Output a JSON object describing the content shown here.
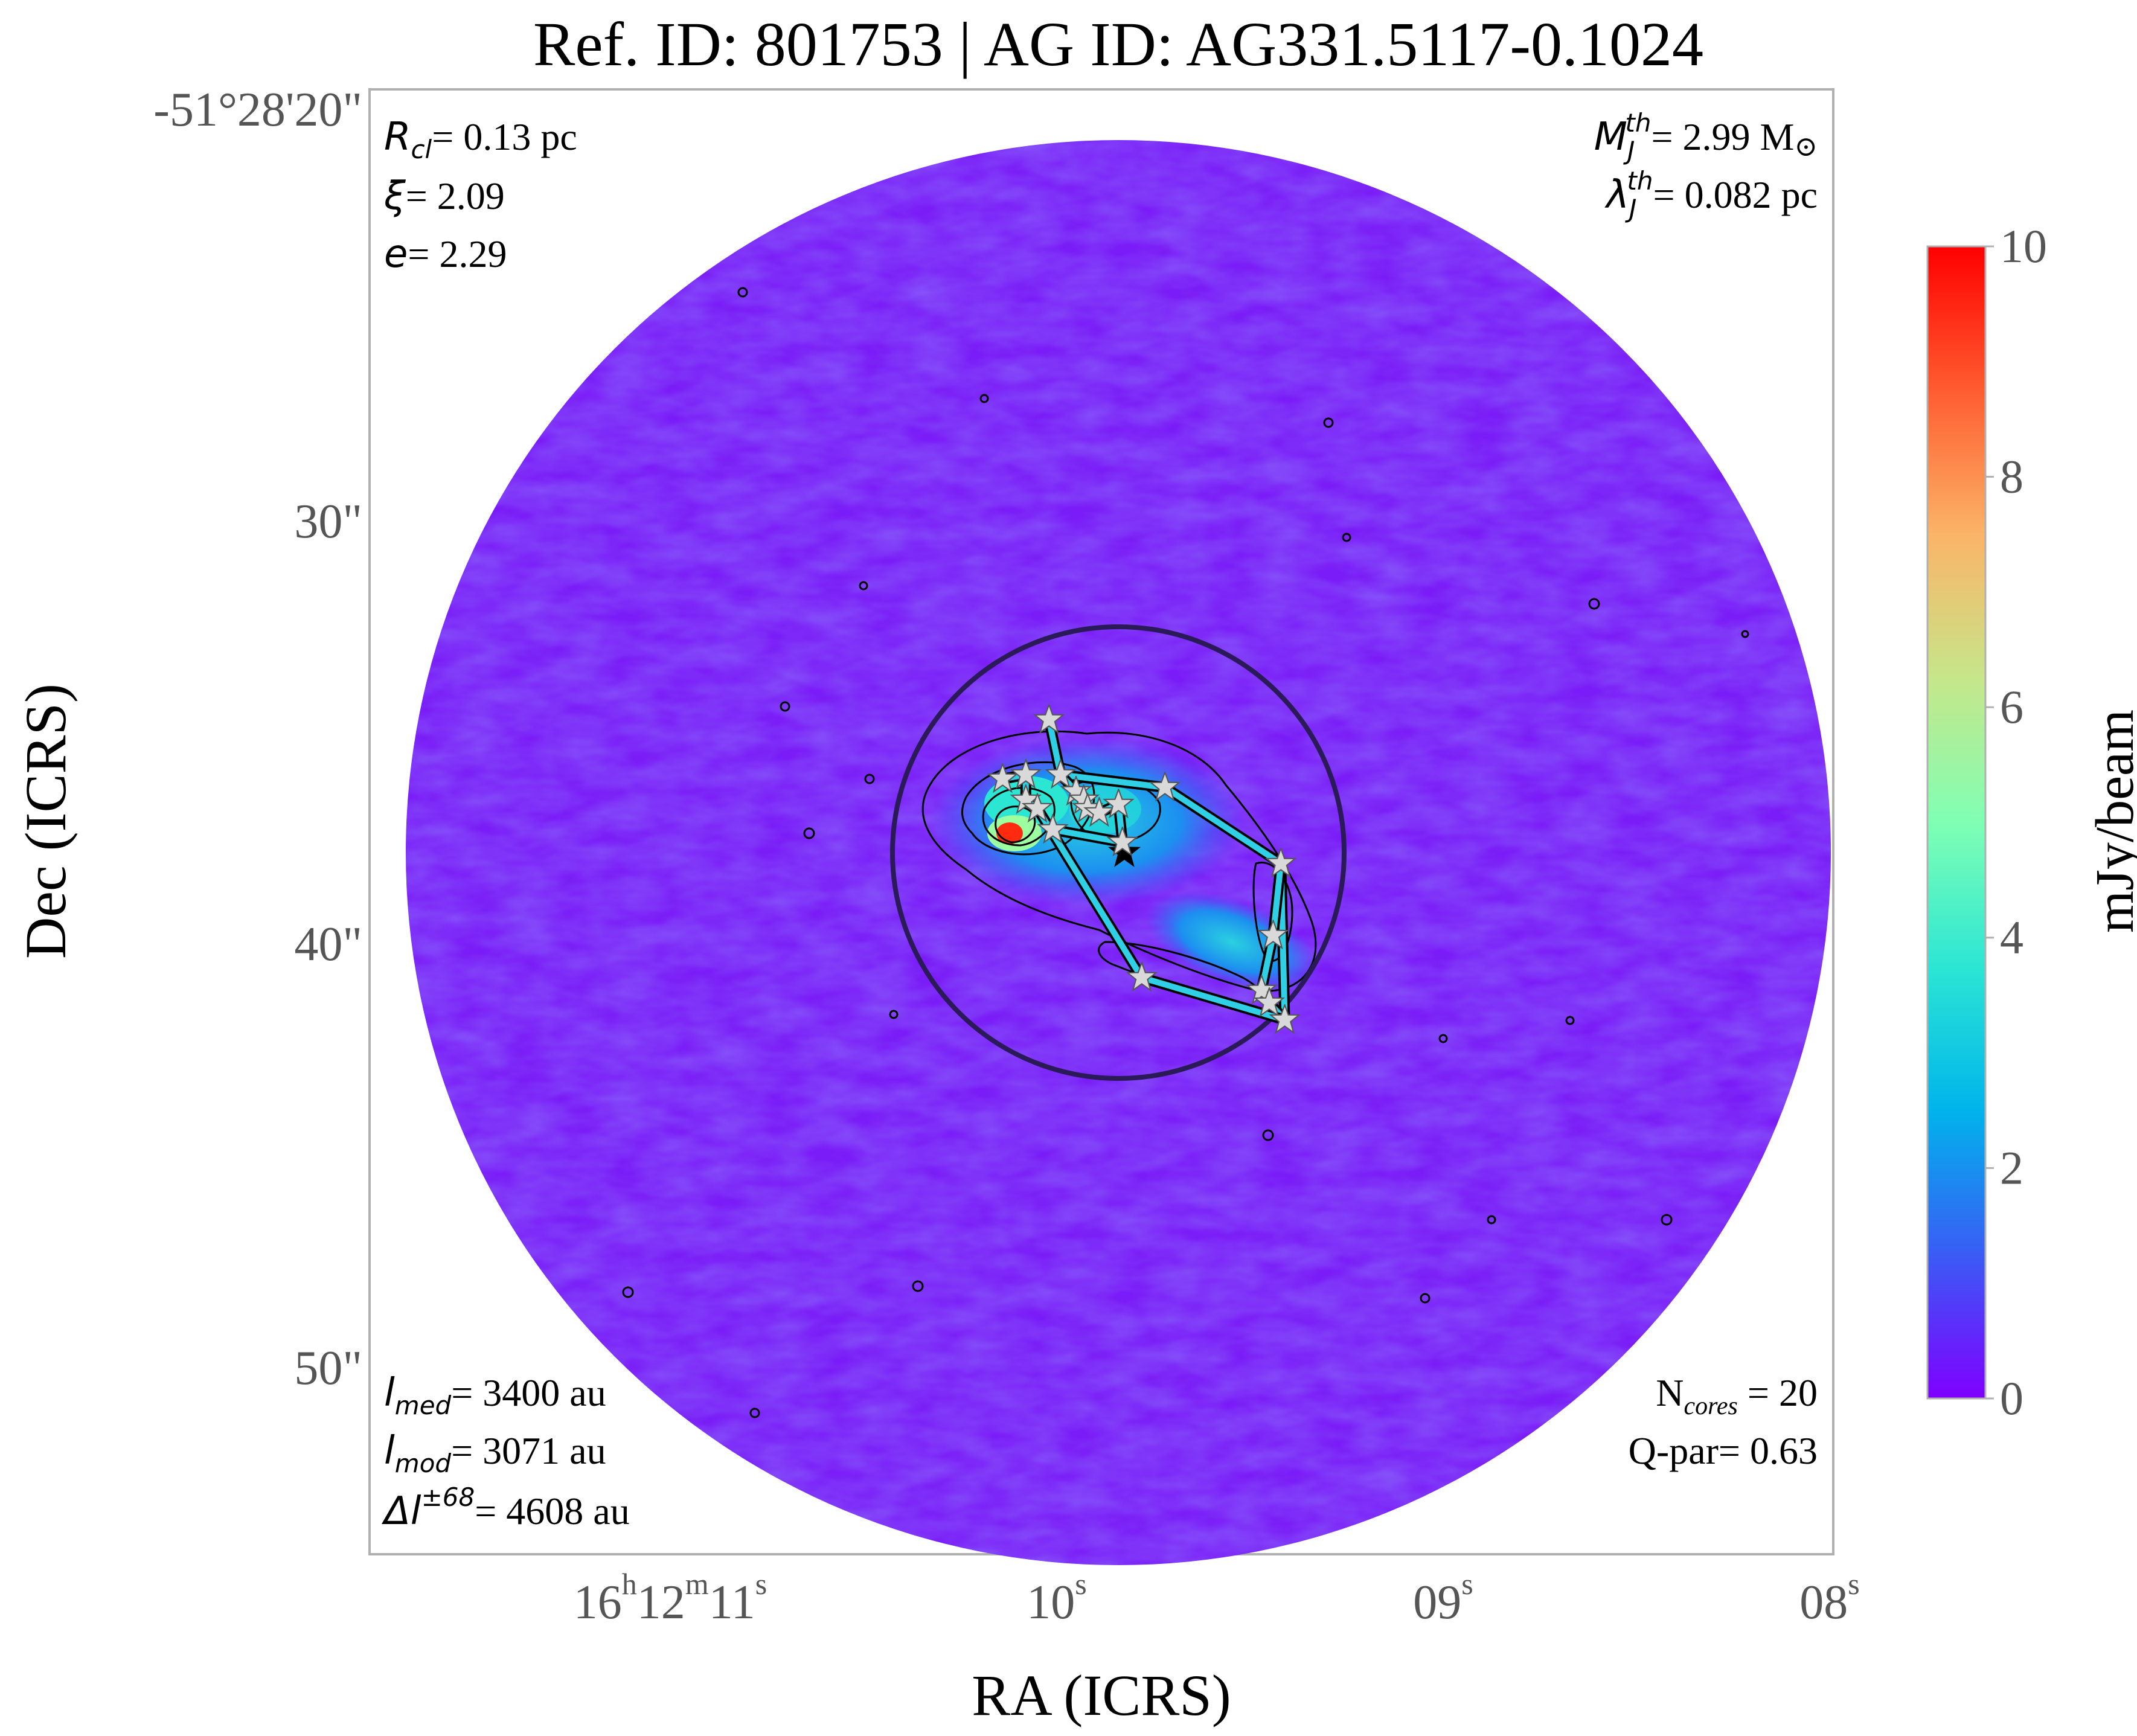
{
  "chart_data": {
    "type": "heatmap",
    "title": "Ref. ID: 801753 | AG ID: AG331.5117-0.1024",
    "xlabel": "RA (ICRS)",
    "ylabel": "Dec (ICRS)",
    "x_ticks": [
      {
        "h": "16",
        "m": "12",
        "s": "11",
        "sup_h": "h",
        "sup_m": "m",
        "sup_s": "s"
      },
      {
        "s": "10",
        "sup_s": "s"
      },
      {
        "s": "09",
        "sup_s": "s"
      },
      {
        "s": "08",
        "sup_s": "s"
      }
    ],
    "y_ticks": [
      "-51°28'20\"",
      "30\"",
      "40\"",
      "50\""
    ],
    "colorbar": {
      "label": "mJy/beam",
      "min": 0,
      "max": 10,
      "ticks": [
        "0",
        "2",
        "4",
        "6",
        "8",
        "10"
      ],
      "colormap": [
        "#7f00ff",
        "#3a5cf5",
        "#00b4eb",
        "#2ce6d4",
        "#80ffb4",
        "#c6e68a",
        "#fbb468",
        "#ff5c30",
        "#ff0000"
      ]
    },
    "map_background_color": "#7a1cf7",
    "data_circle_color": "#2a1a57",
    "mst_edge_color": "#2fd0e6",
    "cores_count": 20,
    "cores": [
      {
        "ra_s": 10.02,
        "dec": 34.2
      },
      {
        "ra_s": 10.14,
        "dec": 35.6
      },
      {
        "ra_s": 10.08,
        "dec": 35.5
      },
      {
        "ra_s": 9.99,
        "dec": 35.5
      },
      {
        "ra_s": 9.95,
        "dec": 35.9
      },
      {
        "ra_s": 9.93,
        "dec": 36.1
      },
      {
        "ra_s": 10.08,
        "dec": 36.1
      },
      {
        "ra_s": 10.05,
        "dec": 36.3
      },
      {
        "ra_s": 9.92,
        "dec": 36.3
      },
      {
        "ra_s": 9.89,
        "dec": 36.4
      },
      {
        "ra_s": 9.72,
        "dec": 35.8
      },
      {
        "ra_s": 9.42,
        "dec": 37.6
      },
      {
        "ra_s": 9.44,
        "dec": 39.3
      },
      {
        "ra_s": 9.47,
        "dec": 40.6
      },
      {
        "ra_s": 9.45,
        "dec": 40.9
      },
      {
        "ra_s": 9.41,
        "dec": 41.3
      },
      {
        "ra_s": 9.78,
        "dec": 40.3
      },
      {
        "ra_s": 9.83,
        "dec": 37.1
      },
      {
        "ra_s": 10.01,
        "dec": 36.8
      },
      {
        "ra_s": 9.84,
        "dec": 36.2
      }
    ],
    "mst_edges": [
      [
        0,
        3
      ],
      [
        3,
        10
      ],
      [
        10,
        11
      ],
      [
        11,
        15
      ],
      [
        15,
        14
      ],
      [
        14,
        13
      ],
      [
        13,
        12
      ],
      [
        12,
        11
      ],
      [
        15,
        16
      ],
      [
        16,
        7
      ],
      [
        1,
        2
      ],
      [
        2,
        6
      ],
      [
        6,
        7
      ],
      [
        3,
        4
      ],
      [
        4,
        5
      ],
      [
        5,
        8
      ],
      [
        8,
        9
      ],
      [
        9,
        19
      ],
      [
        19,
        17
      ],
      [
        17,
        18
      ]
    ]
  },
  "annotations": {
    "top_left": [
      "R",
      "cl",
      "= 0.13 pc",
      "ξ",
      "= 2.09",
      "e",
      "= 2.29"
    ],
    "top_right": [
      "M",
      "J",
      "th",
      "= 2.99 M",
      "⊙",
      "λ",
      "J",
      "th",
      "= 0.082 pc"
    ],
    "bottom_left": [
      "l",
      "med",
      "= 3400 au",
      "l",
      "mod",
      "= 3071 au",
      "Δl",
      "±68",
      "= 4608 au"
    ],
    "bottom_right": [
      "N",
      "cores",
      " = 20",
      "Q-par= 0.63"
    ]
  }
}
